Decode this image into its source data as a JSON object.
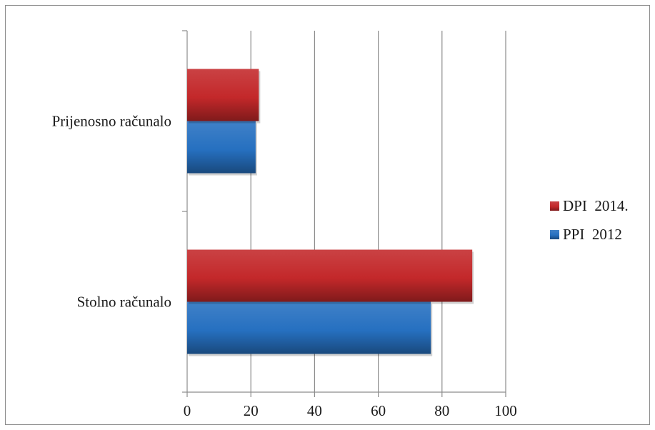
{
  "chart_data": {
    "type": "bar",
    "orientation": "horizontal",
    "title": "",
    "xlabel": "",
    "ylabel": "",
    "categories": [
      "Stolno računalo",
      "Prijenosno računalo"
    ],
    "series": [
      {
        "name": "PPI  2012",
        "values": [
          76.5,
          21.5
        ],
        "color": "#2670c0"
      },
      {
        "name": "DPI  2014.",
        "values": [
          89.5,
          22.5
        ],
        "color": "#c3282a"
      }
    ],
    "legend_order": [
      1,
      0
    ],
    "xlim": [
      0,
      100
    ],
    "xticks": [
      0,
      20,
      40,
      60,
      80,
      100
    ],
    "xtick_labels": [
      "0",
      "20",
      "40",
      "60",
      "80",
      "100"
    ],
    "grid": true,
    "legend_position": "right"
  }
}
